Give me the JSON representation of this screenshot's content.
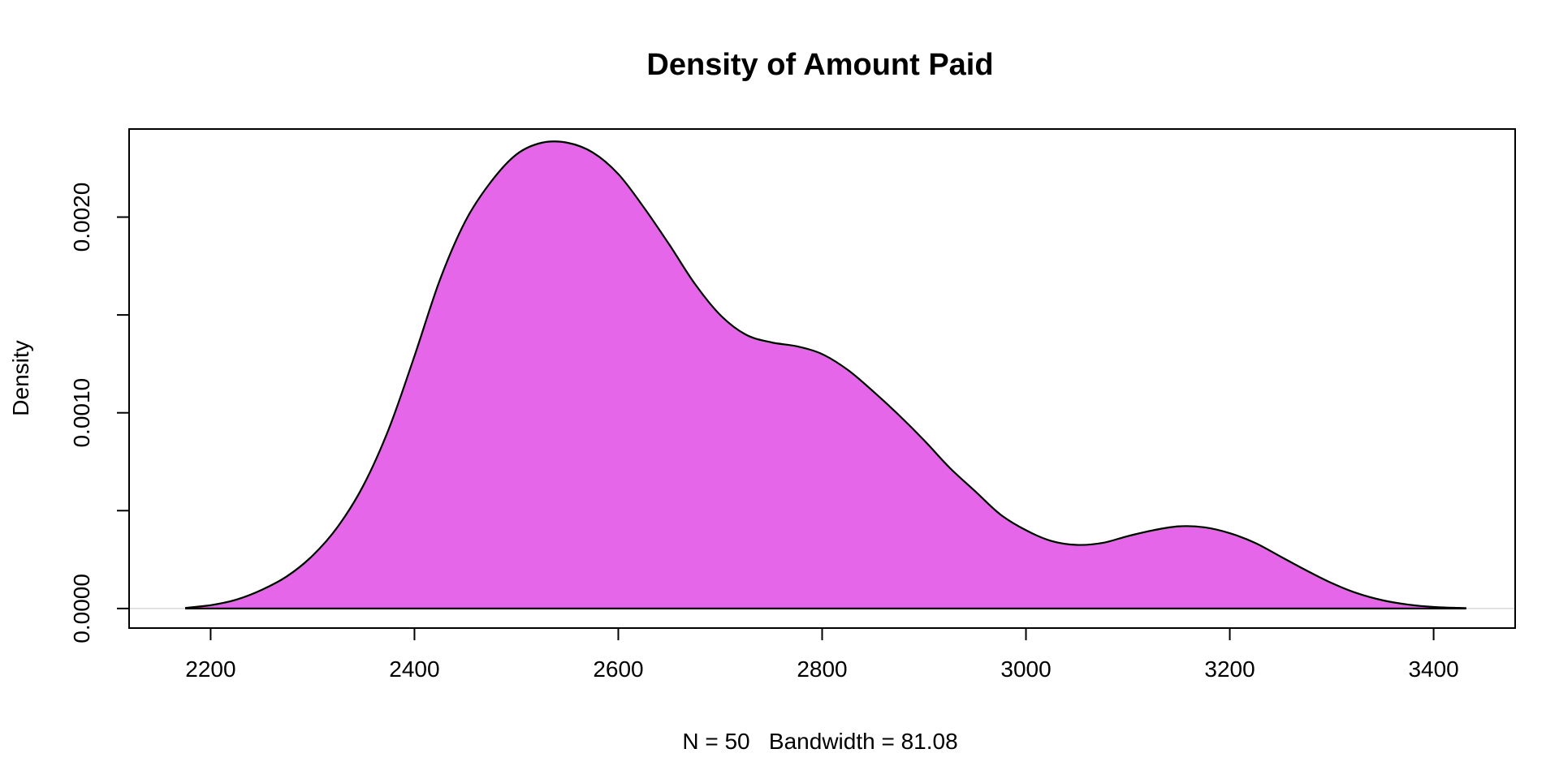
{
  "chart_data": {
    "type": "area",
    "title": "Density of Amount Paid",
    "xlabel": "N = 50   Bandwidth = 81.08",
    "ylabel": "Density",
    "xlim": [
      2120,
      3480
    ],
    "ylim": [
      -0.0001,
      0.00245
    ],
    "x_ticks": [
      2200,
      2400,
      2600,
      2800,
      3000,
      3200,
      3400
    ],
    "y_ticks": [
      0,
      0.0005,
      0.001,
      0.0015,
      0.002
    ],
    "y_tick_labels": [
      "0.0000",
      "",
      "0.0010",
      "",
      "0.0020"
    ],
    "grid": false,
    "baseline": 0,
    "fill_color": "#E666E9",
    "line_color": "#000000",
    "series": [
      {
        "x": [
          2175,
          2200,
          2225,
          2250,
          2275,
          2300,
          2325,
          2350,
          2375,
          2400,
          2425,
          2450,
          2475,
          2500,
          2525,
          2550,
          2575,
          2600,
          2625,
          2650,
          2675,
          2700,
          2725,
          2750,
          2775,
          2800,
          2825,
          2850,
          2875,
          2900,
          2925,
          2950,
          2975,
          3000,
          3025,
          3050,
          3075,
          3100,
          3125,
          3150,
          3175,
          3200,
          3225,
          3250,
          3275,
          3300,
          3325,
          3350,
          3375,
          3400,
          3425,
          3432
        ],
        "y": [
          3e-06,
          1.7e-05,
          4.5e-05,
          9.5e-05,
          0.000165,
          0.00027,
          0.00042,
          0.00063,
          0.00092,
          0.00129,
          0.00168,
          0.00198,
          0.00218,
          0.00232,
          0.00238,
          0.00238,
          0.00233,
          0.00222,
          0.00205,
          0.00186,
          0.00166,
          0.0015,
          0.0014,
          0.00136,
          0.00134,
          0.0013,
          0.00122,
          0.00111,
          0.00099,
          0.00086,
          0.00072,
          0.0006,
          0.00048,
          0.0004,
          0.000345,
          0.000325,
          0.000335,
          0.00037,
          0.0004,
          0.00042,
          0.000415,
          0.000385,
          0.000335,
          0.000265,
          0.000195,
          0.00013,
          7.8e-05,
          4.2e-05,
          2e-05,
          8e-06,
          3e-06,
          2e-06
        ]
      }
    ]
  }
}
